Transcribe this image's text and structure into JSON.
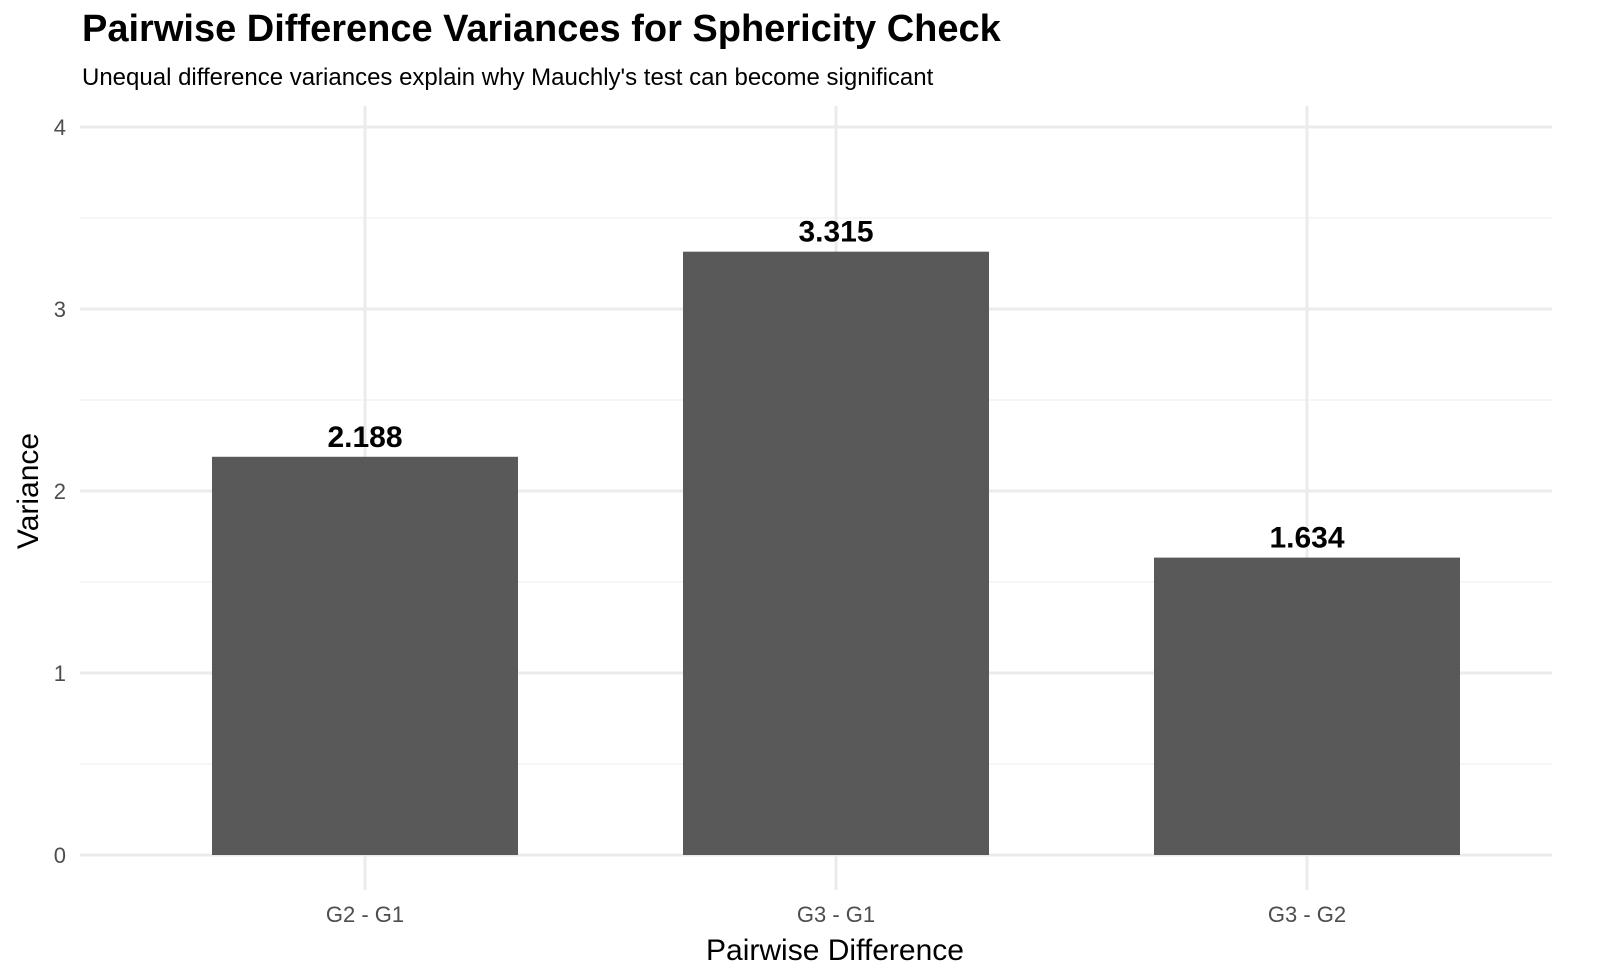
{
  "chart_data": {
    "type": "bar",
    "title": "Pairwise Difference Variances for Sphericity Check",
    "subtitle": "Unequal difference variances explain why Mauchly's test can become significant",
    "xlabel": "Pairwise Difference",
    "ylabel": "Variance",
    "categories": [
      "G2 - G1",
      "G3 - G1",
      "G3 - G2"
    ],
    "values": [
      2.188,
      3.315,
      1.634
    ],
    "data_labels": [
      "2.188",
      "3.315",
      "1.634"
    ],
    "ylim": [
      0,
      4
    ],
    "yticks": [
      0,
      1,
      2,
      3,
      4
    ],
    "grid": true,
    "legend": "none",
    "colors": {
      "bar": "#595959",
      "grid": "#ebebeb",
      "tick_text": "#4d4d4d"
    }
  }
}
